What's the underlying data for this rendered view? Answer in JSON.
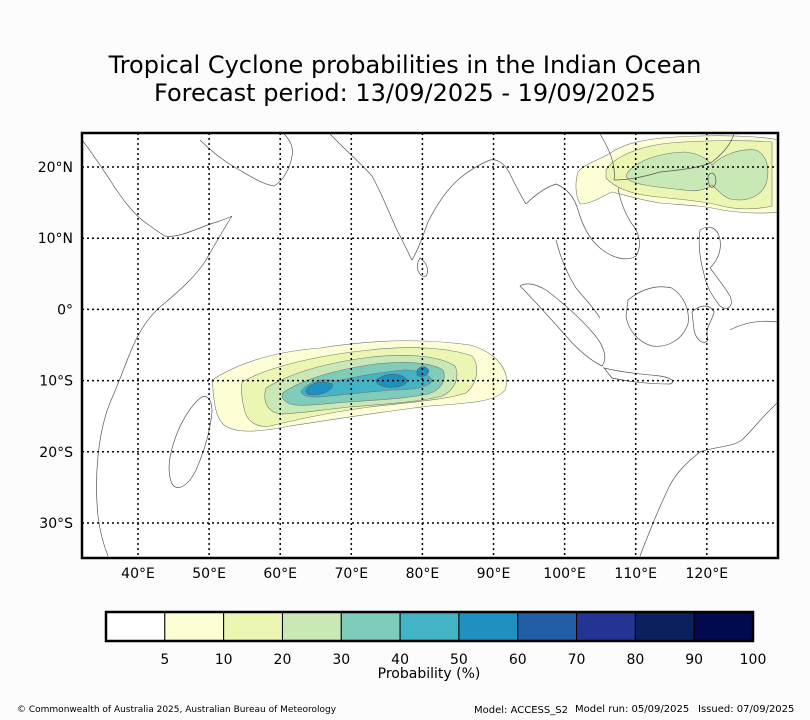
{
  "title_line1": "Tropical Cyclone probabilities in the Indian Ocean",
  "title_line2": "Forecast period: 13/09/2025 - 19/09/2025",
  "map": {
    "lon_ticks": [
      "40°E",
      "50°E",
      "60°E",
      "70°E",
      "80°E",
      "90°E",
      "100°E",
      "110°E",
      "120°E"
    ],
    "lat_ticks": [
      "20°N",
      "10°N",
      "0°",
      "10°S",
      "20°S",
      "30°S"
    ],
    "grid": true
  },
  "colorbar": {
    "label": "Probability (%)",
    "ticks": [
      "5",
      "10",
      "20",
      "30",
      "40",
      "50",
      "60",
      "70",
      "80",
      "90",
      "100"
    ],
    "colors": [
      "#ffffff",
      "#fdfed6",
      "#ebf6b2",
      "#c8e8b6",
      "#7fccbb",
      "#43b3c6",
      "#1f91c0",
      "#225ea8",
      "#253393",
      "#0c2060",
      "#03094f"
    ]
  },
  "probability_areas": [
    {
      "region": "South Indian Ocean, ~10°S, 50°E-93°E",
      "max_level": "50-60"
    },
    {
      "region": "South China Sea / Philippine Sea, ~20°N, 110°E-125°E",
      "max_level": "20-30"
    }
  ],
  "footer": {
    "copyright": "© Commonwealth of Australia 2025, Australian Bureau of Meteorology",
    "model": "Model: ACCESS_S2",
    "model_run": "Model run: 05/09/2025",
    "issued": "Issued: 07/09/2025"
  }
}
